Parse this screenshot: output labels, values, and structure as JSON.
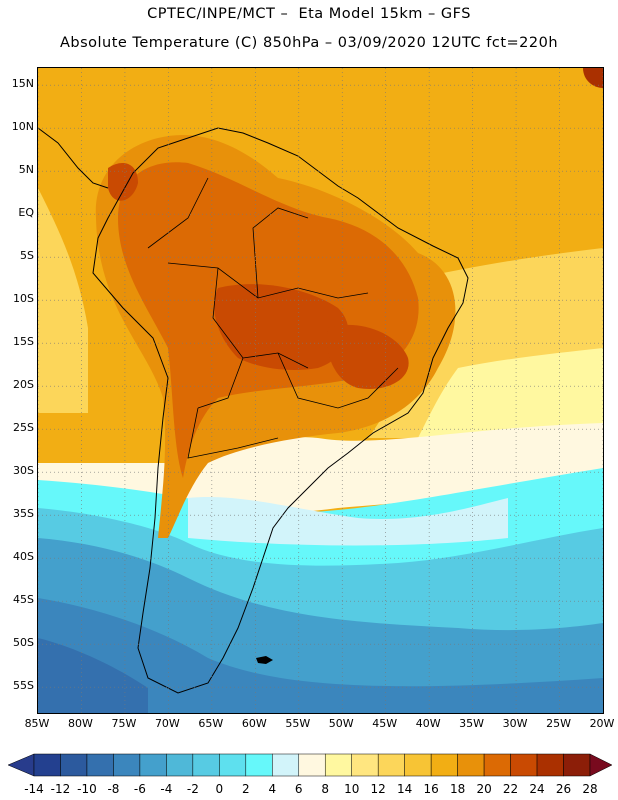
{
  "title_line1": "CPTEC/INPE/MCT –  Eta Model 15km – GFS",
  "title_line2": "Absolute Temperature (C) 850hPa – 03/09/2020 12UTC fct=220h",
  "map": {
    "lon_range": [
      -85,
      -20
    ],
    "lat_range": [
      -58,
      17
    ],
    "lat_labels": [
      {
        "text": "15N",
        "lat": 15
      },
      {
        "text": "10N",
        "lat": 10
      },
      {
        "text": "5N",
        "lat": 5
      },
      {
        "text": "EQ",
        "lat": 0
      },
      {
        "text": "5S",
        "lat": -5
      },
      {
        "text": "10S",
        "lat": -10
      },
      {
        "text": "15S",
        "lat": -15
      },
      {
        "text": "20S",
        "lat": -20
      },
      {
        "text": "25S",
        "lat": -25
      },
      {
        "text": "30S",
        "lat": -30
      },
      {
        "text": "35S",
        "lat": -35
      },
      {
        "text": "40S",
        "lat": -40
      },
      {
        "text": "45S",
        "lat": -45
      },
      {
        "text": "50S",
        "lat": -50
      },
      {
        "text": "55S",
        "lat": -55
      }
    ],
    "lon_labels": [
      {
        "text": "85W",
        "lon": -85
      },
      {
        "text": "80W",
        "lon": -80
      },
      {
        "text": "75W",
        "lon": -75
      },
      {
        "text": "70W",
        "lon": -70
      },
      {
        "text": "65W",
        "lon": -65
      },
      {
        "text": "60W",
        "lon": -60
      },
      {
        "text": "55W",
        "lon": -55
      },
      {
        "text": "50W",
        "lon": -50
      },
      {
        "text": "45W",
        "lon": -45
      },
      {
        "text": "40W",
        "lon": -40
      },
      {
        "text": "35W",
        "lon": -35
      },
      {
        "text": "30W",
        "lon": -30
      },
      {
        "text": "25W",
        "lon": -25
      },
      {
        "text": "20W",
        "lon": -20
      }
    ]
  },
  "colorbar": {
    "labels": [
      "-14",
      "-12",
      "-10",
      "-8",
      "-6",
      "-4",
      "-2",
      "0",
      "2",
      "4",
      "6",
      "8",
      "10",
      "12",
      "14",
      "16",
      "18",
      "20",
      "22",
      "24",
      "26",
      "28"
    ],
    "low_extend_color": "#283c8c",
    "high_extend_color": "#780a1e",
    "colors": [
      "#23408f",
      "#2c5a9e",
      "#3470ae",
      "#3b86bd",
      "#44a0cc",
      "#4fb8d8",
      "#57cbe3",
      "#5ee0ee",
      "#66f8fa",
      "#d2f4fa",
      "#fff8e0",
      "#fff8a0",
      "#ffe680",
      "#fcd65a",
      "#f7c435",
      "#f2ae14",
      "#e8910a",
      "#dc6a04",
      "#c94a02",
      "#aa3000",
      "#8c1e08"
    ]
  },
  "zones": [
    {
      "name": "north-ocean",
      "color": "#f2ae14"
    },
    {
      "name": "subtropical-ocean",
      "color": "#fcd65a"
    },
    {
      "name": "warm-land",
      "color": "#e8910a"
    },
    {
      "name": "hot-core",
      "color": "#dc6a04"
    },
    {
      "name": "hottest",
      "color": "#c94a02"
    },
    {
      "name": "transition-cream",
      "color": "#fff8e0"
    },
    {
      "name": "cold-cyan",
      "color": "#66f8fa"
    },
    {
      "name": "cold-sky",
      "color": "#4fb8d8"
    },
    {
      "name": "cold-deep",
      "color": "#3b86bd"
    }
  ]
}
